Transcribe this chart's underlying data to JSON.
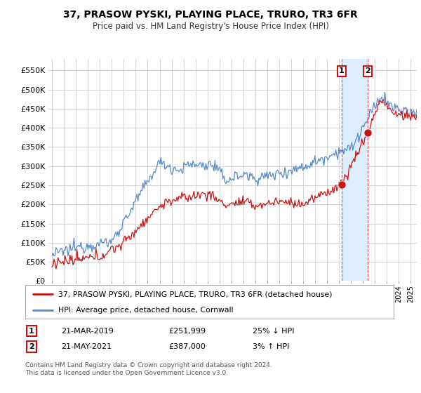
{
  "title": "37, PRASOW PYSKI, PLAYING PLACE, TRURO, TR3 6FR",
  "subtitle": "Price paid vs. HM Land Registry's House Price Index (HPI)",
  "ylabel_ticks": [
    "£0",
    "£50K",
    "£100K",
    "£150K",
    "£200K",
    "£250K",
    "£300K",
    "£350K",
    "£400K",
    "£450K",
    "£500K",
    "£550K"
  ],
  "ytick_values": [
    0,
    50000,
    100000,
    150000,
    200000,
    250000,
    300000,
    350000,
    400000,
    450000,
    500000,
    550000
  ],
  "ylim": [
    0,
    580000
  ],
  "xlim_start": 1994.7,
  "xlim_end": 2025.5,
  "hpi_color": "#5588cc",
  "price_color": "#cc1111",
  "marker1_x": 2019.22,
  "marker1_y": 251999,
  "marker2_x": 2021.38,
  "marker2_y": 387000,
  "legend_label1": "37, PRASOW PYSKI, PLAYING PLACE, TRURO, TR3 6FR (detached house)",
  "legend_label2": "HPI: Average price, detached house, Cornwall",
  "table_row1": [
    "1",
    "21-MAR-2019",
    "£251,999",
    "25% ↓ HPI"
  ],
  "table_row2": [
    "2",
    "21-MAY-2021",
    "£387,000",
    "3% ↑ HPI"
  ],
  "footer": "Contains HM Land Registry data © Crown copyright and database right 2024.\nThis data is licensed under the Open Government Licence v3.0.",
  "bg_color": "#ffffff",
  "grid_color": "#cccccc",
  "dashed_vline_color": "#dd4444",
  "shade_color": "#ddeeff"
}
